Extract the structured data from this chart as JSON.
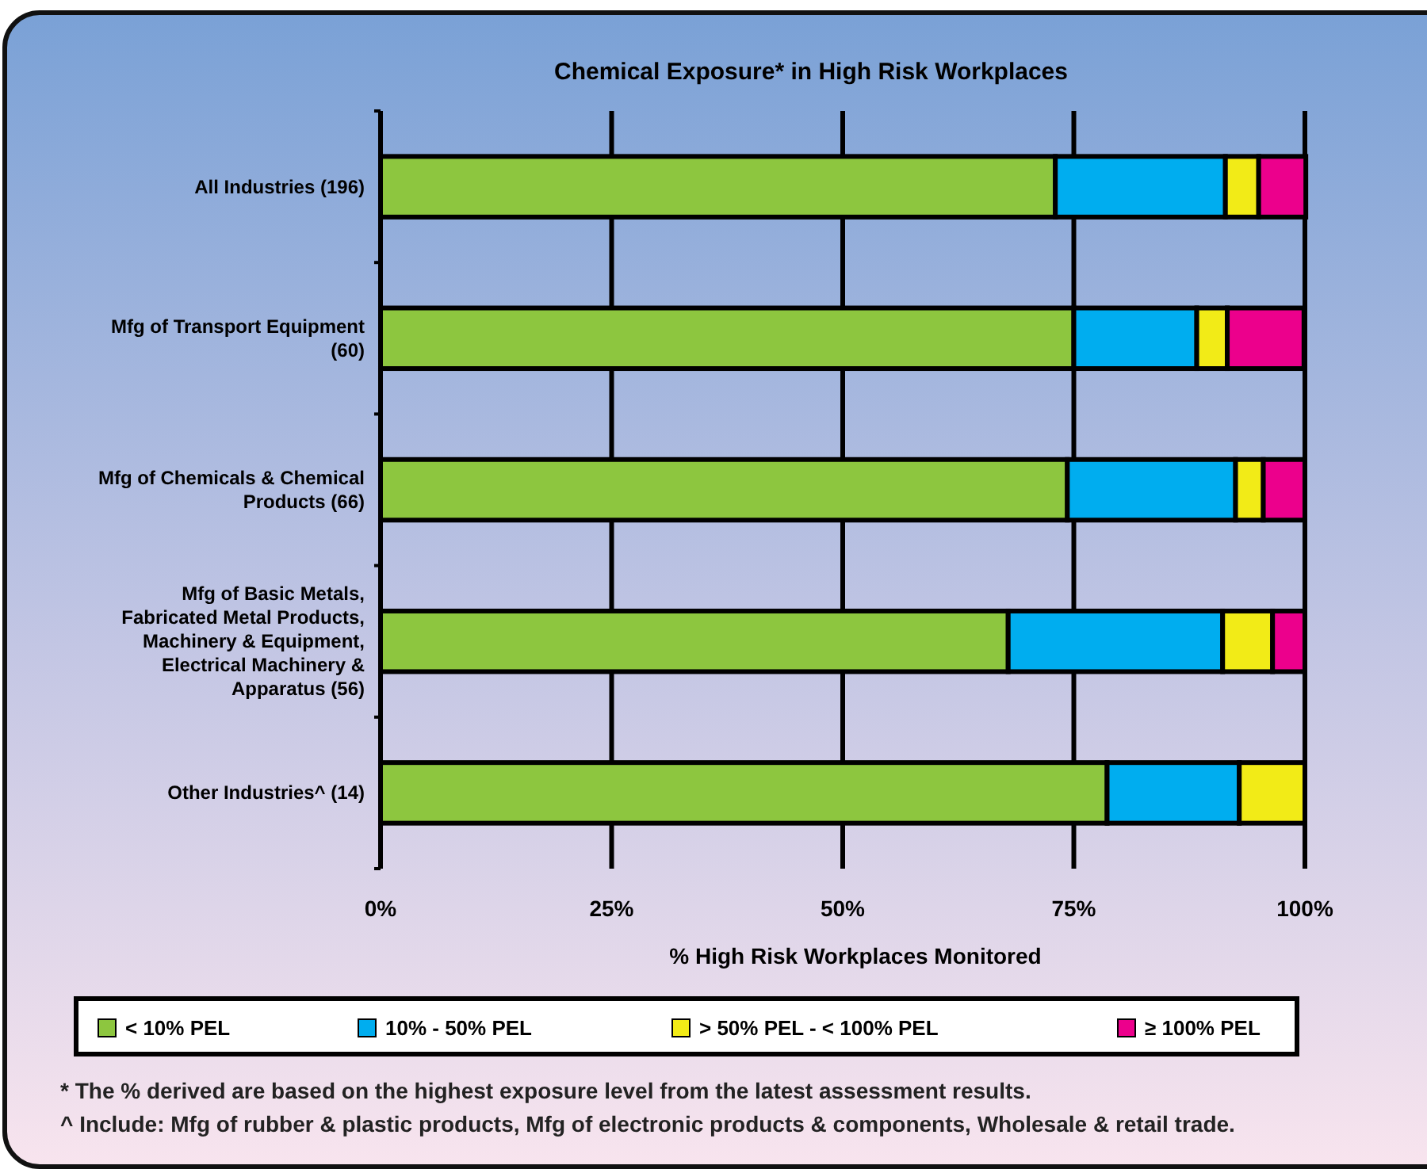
{
  "chart_data": {
    "type": "bar",
    "orientation": "horizontal",
    "stacked": true,
    "title": "Chemical Exposure* in High Risk Workplaces",
    "xlabel": "% High Risk Workplaces Monitored",
    "categories": [
      "All Industries (196)",
      "Mfg of Transport Equipment (60)",
      "Mfg of Chemicals & Chemical Products (66)",
      "Mfg of Basic Metals, Fabricated Metal Products, Machinery & Equipment, Electrical Machinery & Apparatus (56)",
      "Other Industries^ (14)"
    ],
    "series": [
      {
        "name": "< 10% PEL",
        "color": "#8dc63f",
        "values": [
          73.0,
          75.0,
          74.3,
          67.9,
          78.6
        ]
      },
      {
        "name": "10% - 50% PEL",
        "color": "#00adef",
        "values": [
          18.4,
          13.3,
          18.2,
          23.2,
          14.3
        ]
      },
      {
        "name": "> 50% PEL - < 100% PEL",
        "color": "#f2eb17",
        "values": [
          3.6,
          3.3,
          3.0,
          5.4,
          7.1
        ]
      },
      {
        "name": "≥ 100% PEL",
        "color": "#ec008c",
        "values": [
          5.1,
          8.3,
          4.5,
          3.5,
          null
        ]
      }
    ],
    "xlim": [
      0,
      100
    ],
    "xticks": [
      {
        "value": 0,
        "label": "0%"
      },
      {
        "value": 25,
        "label": "25%"
      },
      {
        "value": 50,
        "label": "50%"
      },
      {
        "value": 75,
        "label": "75%"
      },
      {
        "value": 100,
        "label": "100%"
      }
    ],
    "grid": "x",
    "legend": "bottom",
    "annotations": [
      "* The % derived are based on the highest exposure level from the latest assessment results.",
      "^ Include: Mfg of rubber & plastic products, Mfg of electronic products & components, Wholesale & retail trade."
    ]
  }
}
